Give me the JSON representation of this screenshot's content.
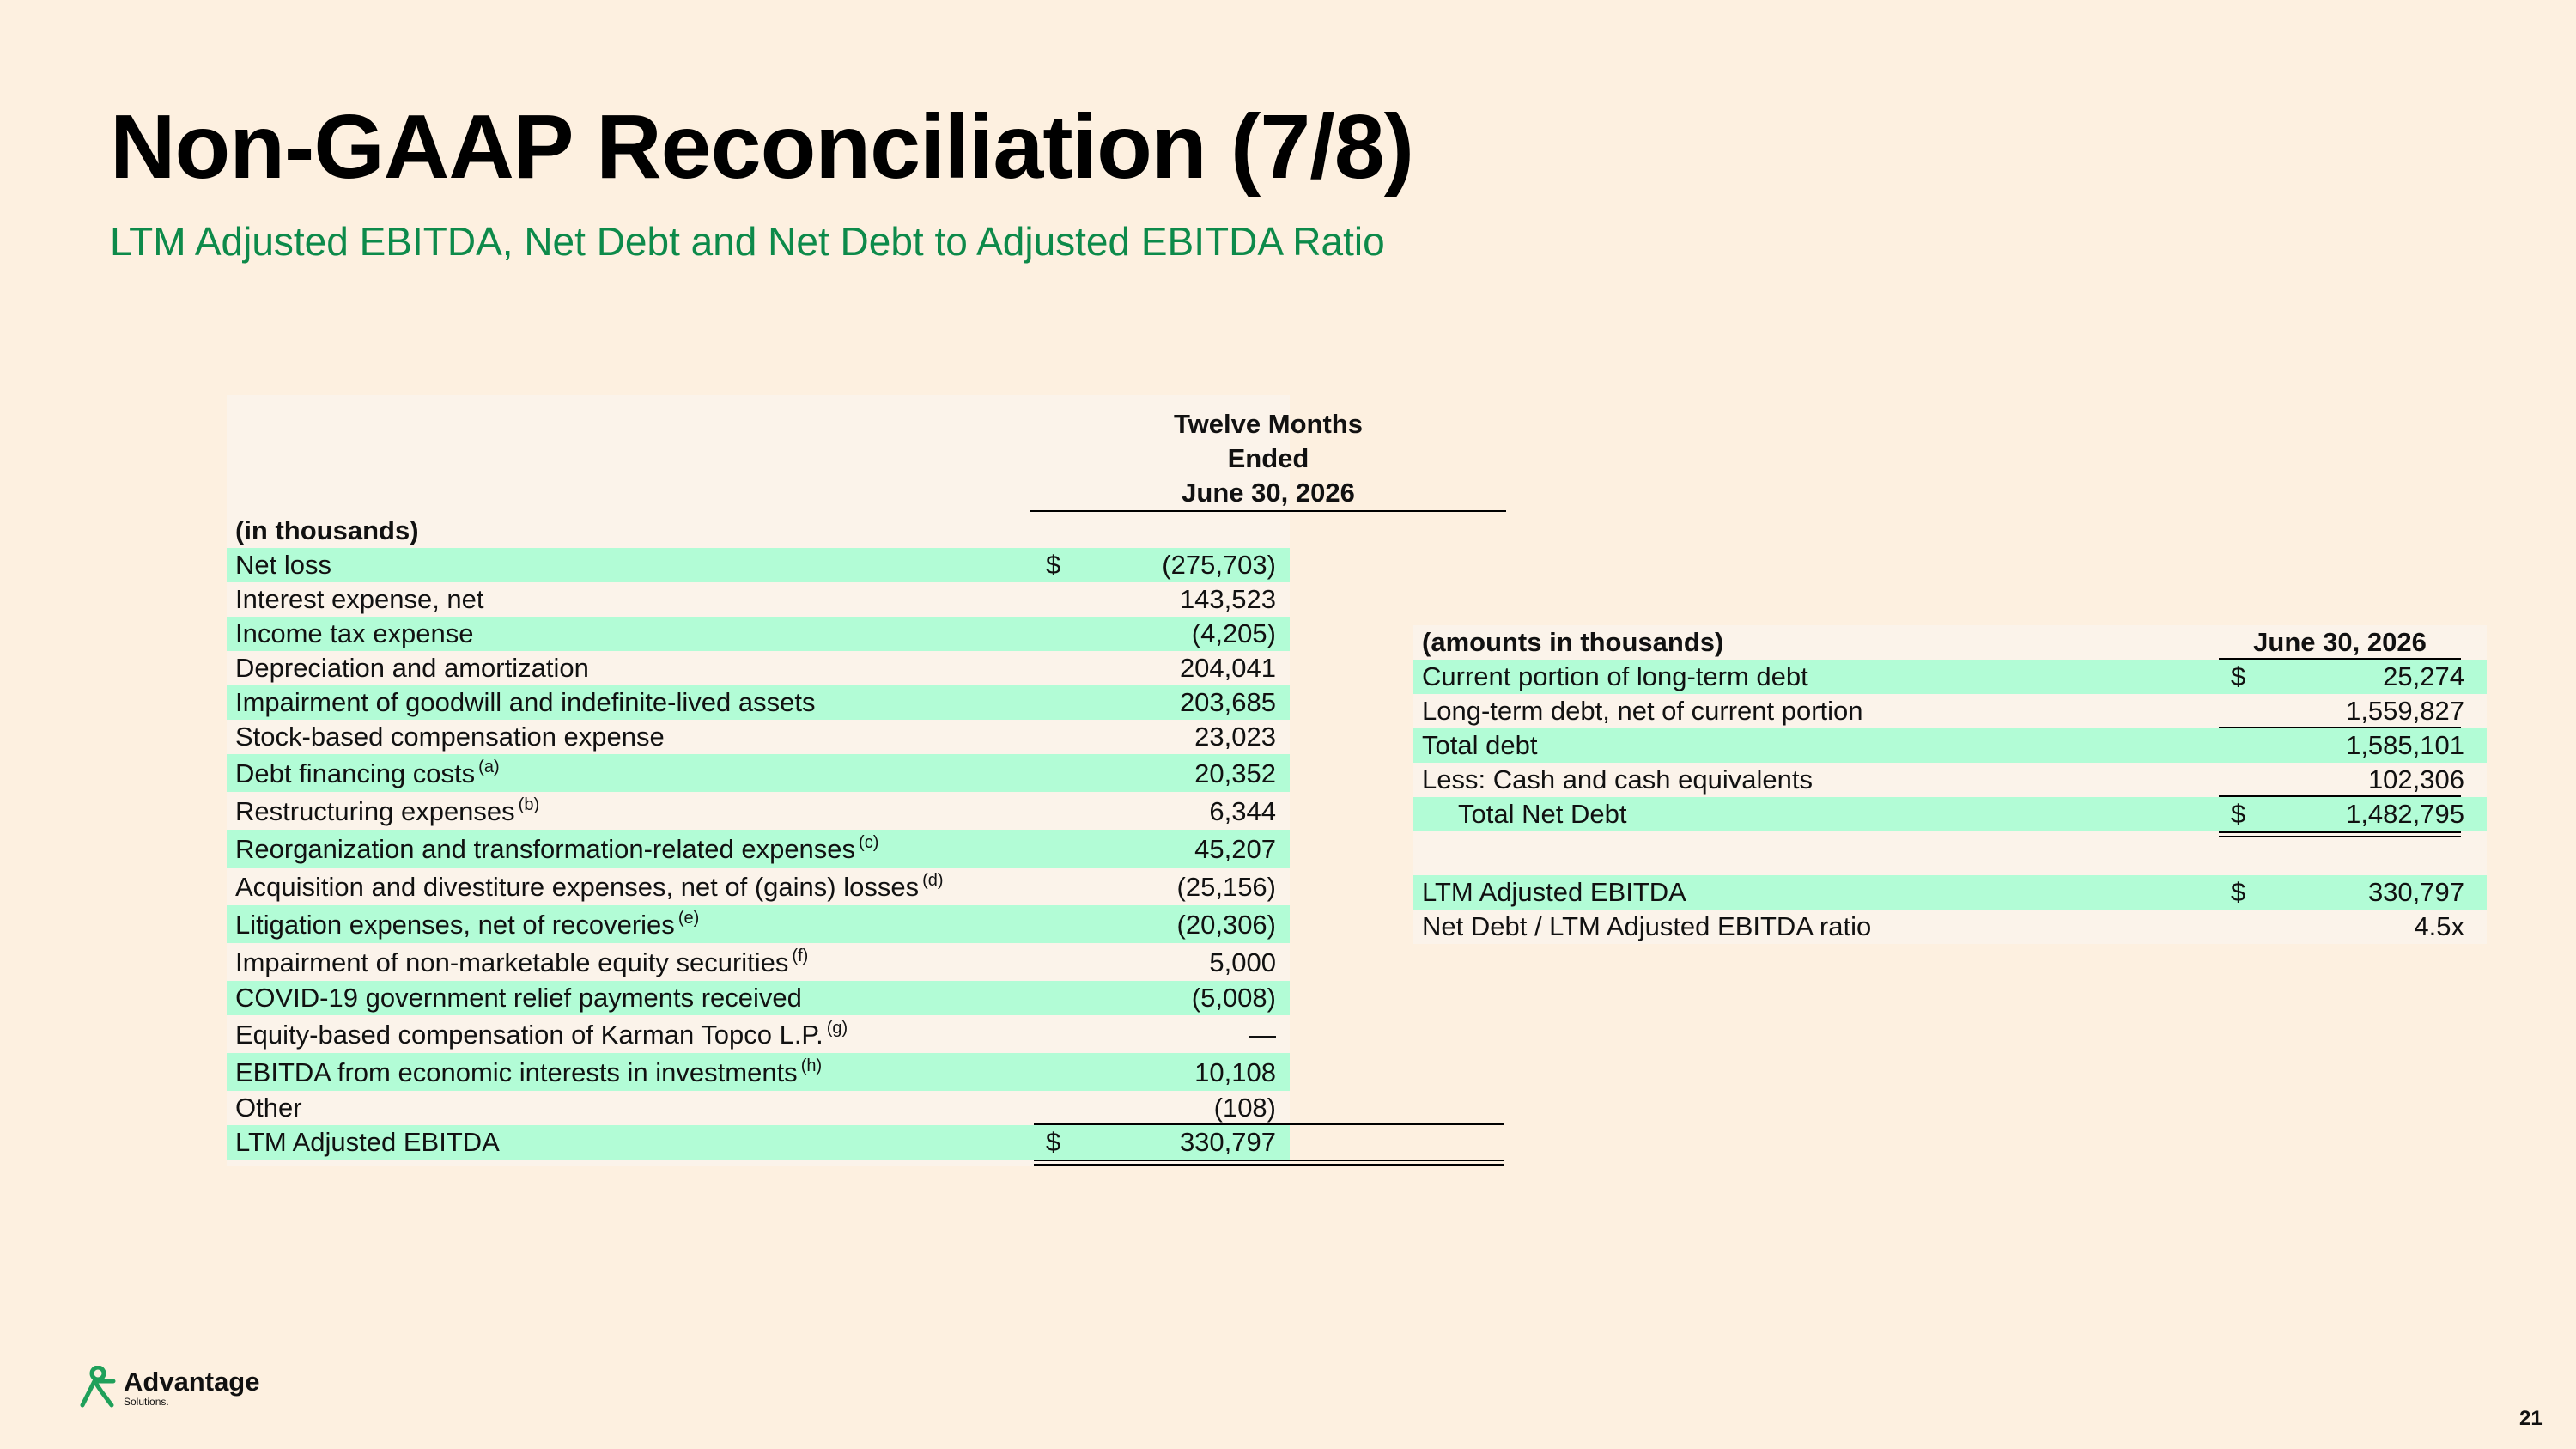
{
  "header": {
    "title": "Non-GAAP Reconciliation (7/8)",
    "subtitle": "LTM Adjusted EBITDA, Net Debt and Net Debt to Adjusted EBITDA Ratio"
  },
  "left_table": {
    "col_header_lines": [
      "Twelve Months",
      "Ended",
      "June 30, 2026"
    ],
    "units_label": "(in thousands)",
    "rows": [
      {
        "label": "Net loss",
        "note": "",
        "dollar": "$",
        "value": "(275,703)"
      },
      {
        "label": "Interest expense, net",
        "note": "",
        "dollar": "",
        "value": "143,523"
      },
      {
        "label": "Income tax expense",
        "note": "",
        "dollar": "",
        "value": "(4,205)"
      },
      {
        "label": "Depreciation and amortization",
        "note": "",
        "dollar": "",
        "value": "204,041"
      },
      {
        "label": "Impairment of goodwill and indefinite-lived assets",
        "note": "",
        "dollar": "",
        "value": "203,685"
      },
      {
        "label": "Stock-based compensation expense",
        "note": "",
        "dollar": "",
        "value": "23,023"
      },
      {
        "label": "Debt financing costs",
        "note": "(a)",
        "dollar": "",
        "value": "20,352"
      },
      {
        "label": "Restructuring expenses",
        "note": "(b)",
        "dollar": "",
        "value": "6,344"
      },
      {
        "label": "Reorganization and transformation-related expenses",
        "note": "(c)",
        "dollar": "",
        "value": "45,207"
      },
      {
        "label": "Acquisition and divestiture expenses, net of (gains) losses",
        "note": "(d)",
        "dollar": "",
        "value": "(25,156)"
      },
      {
        "label": "Litigation expenses, net of recoveries",
        "note": "(e)",
        "dollar": "",
        "value": "(20,306)"
      },
      {
        "label": "Impairment of non-marketable equity securities",
        "note": "(f)",
        "dollar": "",
        "value": "5,000"
      },
      {
        "label": "COVID-19 government relief payments received",
        "note": "",
        "dollar": "",
        "value": "(5,008)"
      },
      {
        "label": "Equity-based compensation of Karman Topco L.P.",
        "note": "(g)",
        "dollar": "",
        "value": "—"
      },
      {
        "label": "EBITDA from economic interests in investments",
        "note": "(h)",
        "dollar": "",
        "value": "10,108"
      },
      {
        "label": "Other",
        "note": "",
        "dollar": "",
        "value": "(108)"
      },
      {
        "label": "LTM Adjusted EBITDA",
        "note": "",
        "dollar": "$",
        "value": "330,797"
      }
    ]
  },
  "right_table": {
    "units_label": "(amounts in thousands)",
    "col_header": "June 30, 2026",
    "rows": [
      {
        "label": "Current portion of long-term debt",
        "dollar": "$",
        "value": "25,274"
      },
      {
        "label": "Long-term debt, net of current portion",
        "dollar": "",
        "value": "1,559,827"
      },
      {
        "label": "Total debt",
        "dollar": "",
        "value": "1,585,101"
      },
      {
        "label": "Less: Cash and cash equivalents",
        "dollar": "",
        "value": "102,306"
      },
      {
        "label": "Total Net Debt",
        "dollar": "$",
        "value": "1,482,795"
      }
    ],
    "ratio_rows": [
      {
        "label": "LTM Adjusted EBITDA",
        "dollar": "$",
        "value": "330,797"
      },
      {
        "label": "Net Debt / LTM Adjusted EBITDA ratio",
        "dollar": "",
        "value": "4.5x"
      }
    ]
  },
  "footer": {
    "logo_name": "Advantage",
    "logo_sub": "Solutions.",
    "logo_icon": "advantage-logo-icon",
    "page_number": "21"
  },
  "colors": {
    "background": "#fdf0e0",
    "row_highlight": "#b2fcd6",
    "subtitle": "#0d8a4a",
    "brand_green": "#1fa05a"
  }
}
